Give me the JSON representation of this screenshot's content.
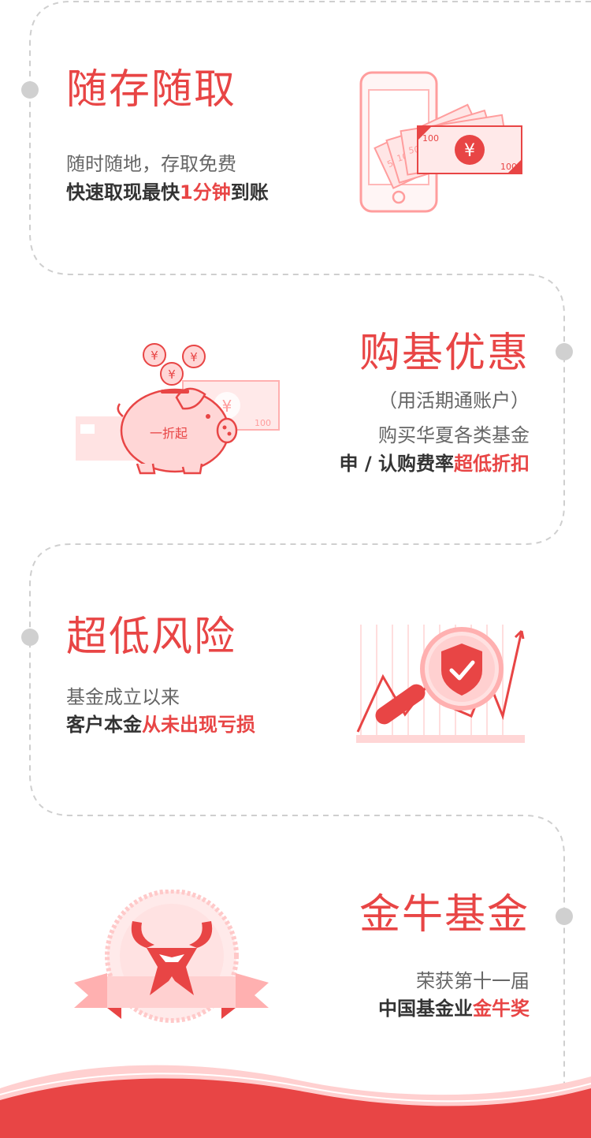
{
  "colors": {
    "accent": "#e84545",
    "pink_light": "#ffd9d9",
    "pink_mid": "#ff9d9d",
    "dashed": "#cfcfcf",
    "dot": "#d0d0d0",
    "text_dark": "#333333",
    "text_gray": "#666666"
  },
  "sections": [
    {
      "title": "随存随取",
      "line1": "随时随地，存取免费",
      "line2_pre": "快速取现最快",
      "line2_hl": "1分钟",
      "line2_post": "到账",
      "illustration": "phone-cash-icon",
      "note_labels": [
        "50",
        "10",
        "50",
        "100",
        "100"
      ],
      "yen": "¥"
    },
    {
      "title": "购基优惠",
      "line1": "（用活期通账户）",
      "line2": "购买华夏各类基金",
      "line3_pre": "申 / 认购费率",
      "line3_hl": "超低折扣",
      "illustration": "piggy-bank-icon",
      "badge": "一折起",
      "yen": "¥",
      "note_label": "100"
    },
    {
      "title": "超低风险",
      "line1": "基金成立以来",
      "line2_pre": "客户本金",
      "line2_hl": "从未出现亏损",
      "illustration": "shield-magnifier-icon"
    },
    {
      "title": "金牛基金",
      "line1": "荣获第十一届",
      "line2_pre": "中国基金业",
      "line2_hl": "金牛奖",
      "illustration": "golden-bull-badge-icon"
    }
  ]
}
